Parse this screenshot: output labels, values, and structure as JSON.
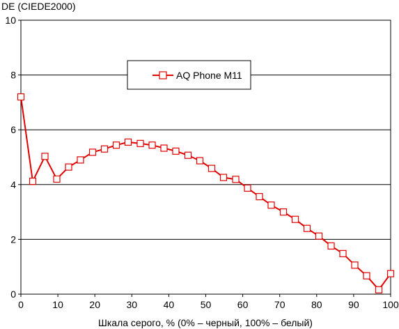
{
  "chart_data": {
    "type": "line",
    "ylabel": "DE (CIEDE2000)",
    "xlabel": "Шкала серого, % (0% – черный, 100% – белый)",
    "xlim": [
      0,
      100
    ],
    "ylim": [
      0,
      10
    ],
    "xticks": [
      0,
      10,
      20,
      30,
      40,
      50,
      60,
      70,
      80,
      90,
      100
    ],
    "yticks": [
      0,
      2,
      4,
      6,
      8,
      10
    ],
    "grid": "horizontal",
    "legend_position": "top-center",
    "series": [
      {
        "name": "AQ Phone M11",
        "color": "#e00000",
        "marker": "square-open",
        "x": [
          0,
          3.2,
          6.5,
          9.7,
          12.9,
          16.1,
          19.4,
          22.6,
          25.8,
          29.0,
          32.3,
          35.5,
          38.7,
          41.9,
          45.2,
          48.4,
          51.6,
          54.8,
          58.1,
          61.3,
          64.5,
          67.7,
          71.0,
          74.2,
          77.4,
          80.6,
          83.9,
          87.1,
          90.3,
          93.5,
          96.8,
          100
        ],
        "y": [
          7.2,
          4.12,
          5.03,
          4.2,
          4.64,
          4.9,
          5.18,
          5.3,
          5.44,
          5.55,
          5.5,
          5.44,
          5.33,
          5.22,
          5.07,
          4.87,
          4.59,
          4.26,
          4.19,
          3.87,
          3.56,
          3.25,
          3.0,
          2.73,
          2.4,
          2.12,
          1.76,
          1.48,
          1.06,
          0.67,
          0.16,
          0.75
        ]
      }
    ]
  }
}
